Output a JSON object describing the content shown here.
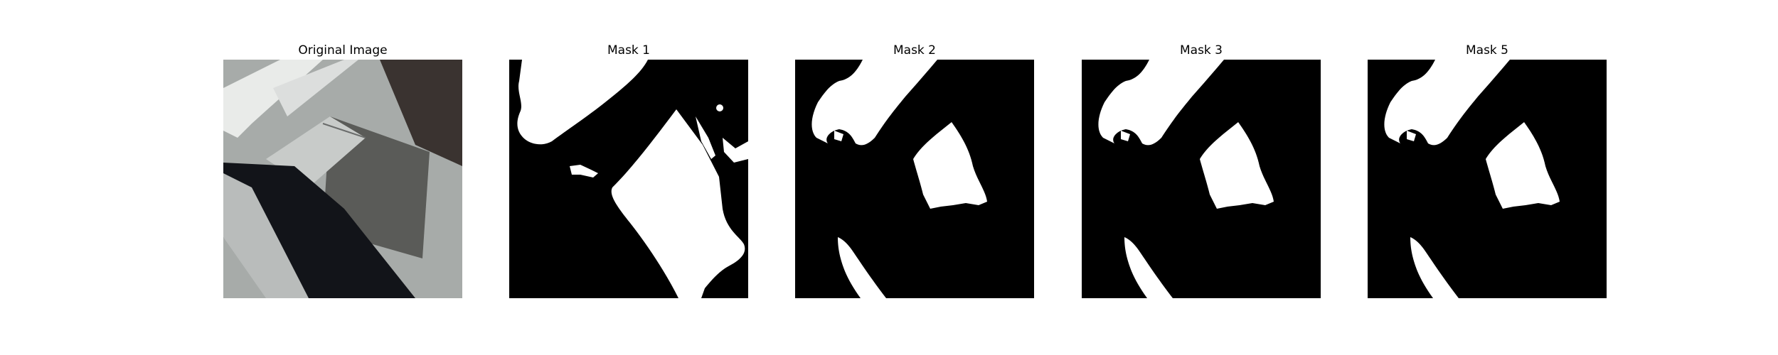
{
  "panels": [
    {
      "title": "Original Image",
      "kind": "photo"
    },
    {
      "title": "Mask 1",
      "kind": "mask"
    },
    {
      "title": "Mask 2",
      "kind": "mask"
    },
    {
      "title": "Mask 3",
      "kind": "mask"
    },
    {
      "title": "Mask 5",
      "kind": "mask"
    }
  ],
  "colors": {
    "mask_background": "#000000",
    "mask_foreground": "#ffffff",
    "photo_dark": "#121419",
    "photo_gray": "#8d8f8e",
    "photo_concrete": "#5a5b58",
    "photo_white": "#e9ebe9"
  }
}
